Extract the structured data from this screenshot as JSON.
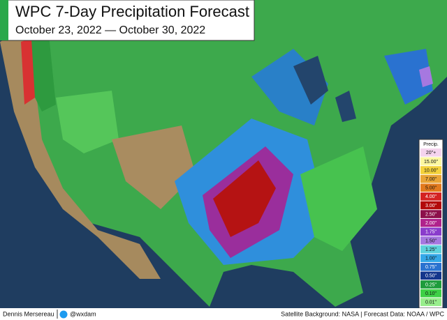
{
  "header": {
    "title": "WPC 7-Day Precipitation Forecast",
    "subtitle": "October 23, 2022 — October 30, 2022"
  },
  "legend": {
    "title": "Precip.",
    "items": [
      {
        "label": "20\"+",
        "color": "#f5d4ee"
      },
      {
        "label": "15.00\"",
        "color": "#fcf8a0"
      },
      {
        "label": "10.00\"",
        "color": "#f4d23c"
      },
      {
        "label": "7.00\"",
        "color": "#e9a436"
      },
      {
        "label": "5.00\"",
        "color": "#e27a1e"
      },
      {
        "label": "4.00\"",
        "color": "#d42222"
      },
      {
        "label": "3.00\"",
        "color": "#b30a0a"
      },
      {
        "label": "2.50\"",
        "color": "#8c0f4a"
      },
      {
        "label": "2.00\"",
        "color": "#b0228c"
      },
      {
        "label": "1.75\"",
        "color": "#8a3ccc"
      },
      {
        "label": "1.50\"",
        "color": "#a678e0"
      },
      {
        "label": "1.25\"",
        "color": "#5ed2dc"
      },
      {
        "label": "1.00\"",
        "color": "#34a8e8"
      },
      {
        "label": "0.75\"",
        "color": "#2a72d0"
      },
      {
        "label": "0.50\"",
        "color": "#14358c"
      },
      {
        "label": "0.25\"",
        "color": "#1e9c3c"
      },
      {
        "label": "0.10\"",
        "color": "#3ed046"
      },
      {
        "label": "0.01\"",
        "color": "#98ee8c"
      }
    ]
  },
  "footer": {
    "author": "Dennis Mersereau",
    "handle": "@wxdam",
    "credits": "Satellite Background: NASA | Forecast Data: NOAA / WPC"
  }
}
